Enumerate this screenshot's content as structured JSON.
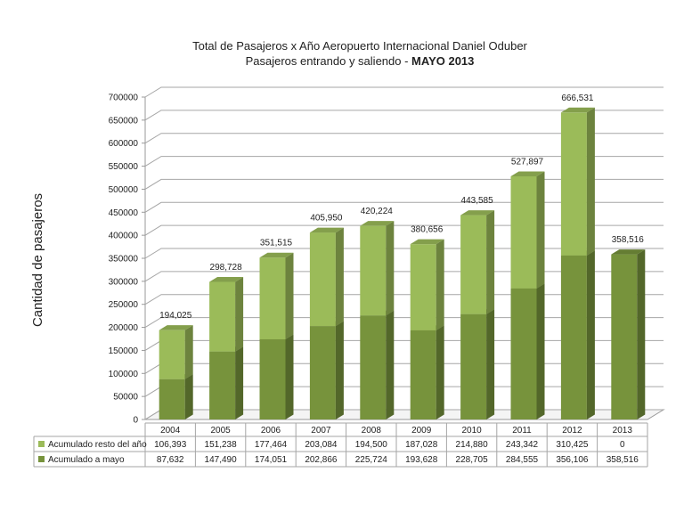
{
  "chart_data": {
    "type": "bar",
    "stacked": true,
    "three_d": true,
    "title_line1": "Total de Pasajeros x Año Aeropuerto Internacional Daniel Oduber",
    "title_line2_prefix": "Pasajeros entrando y saliendo - ",
    "title_line2_bold": "MAYO 2013",
    "ylabel": "Cantidad de pasajeros",
    "ylim": [
      0,
      700000
    ],
    "ytick_step": 50000,
    "grid": true,
    "categories": [
      "2004",
      "2005",
      "2006",
      "2007",
      "2008",
      "2009",
      "2010",
      "2011",
      "2012",
      "2013"
    ],
    "series": [
      {
        "name": "Acumulado a mayo",
        "color": "#77933c",
        "values": [
          87632,
          147490,
          174051,
          202866,
          225724,
          193628,
          228705,
          284555,
          356106,
          358516
        ],
        "labels": [
          "87,632",
          "147,490",
          "174,051",
          "202,866",
          "225,724",
          "193,628",
          "228,705",
          "284,555",
          "356,106",
          "358,516"
        ]
      },
      {
        "name": "Acumulado resto del año",
        "color": "#9bbb59",
        "values": [
          106393,
          151238,
          177464,
          203084,
          194500,
          187028,
          214880,
          243342,
          310425,
          0
        ],
        "labels": [
          "106,393",
          "151,238",
          "177,464",
          "203,084",
          "194,500",
          "187,028",
          "214,880",
          "243,342",
          "310,425",
          "0"
        ]
      }
    ],
    "totals": [
      "194,025",
      "298,728",
      "351,515",
      "405,950",
      "420,224",
      "380,656",
      "443,585",
      "527,897",
      "666,531",
      "358,516"
    ],
    "table_below": true
  }
}
